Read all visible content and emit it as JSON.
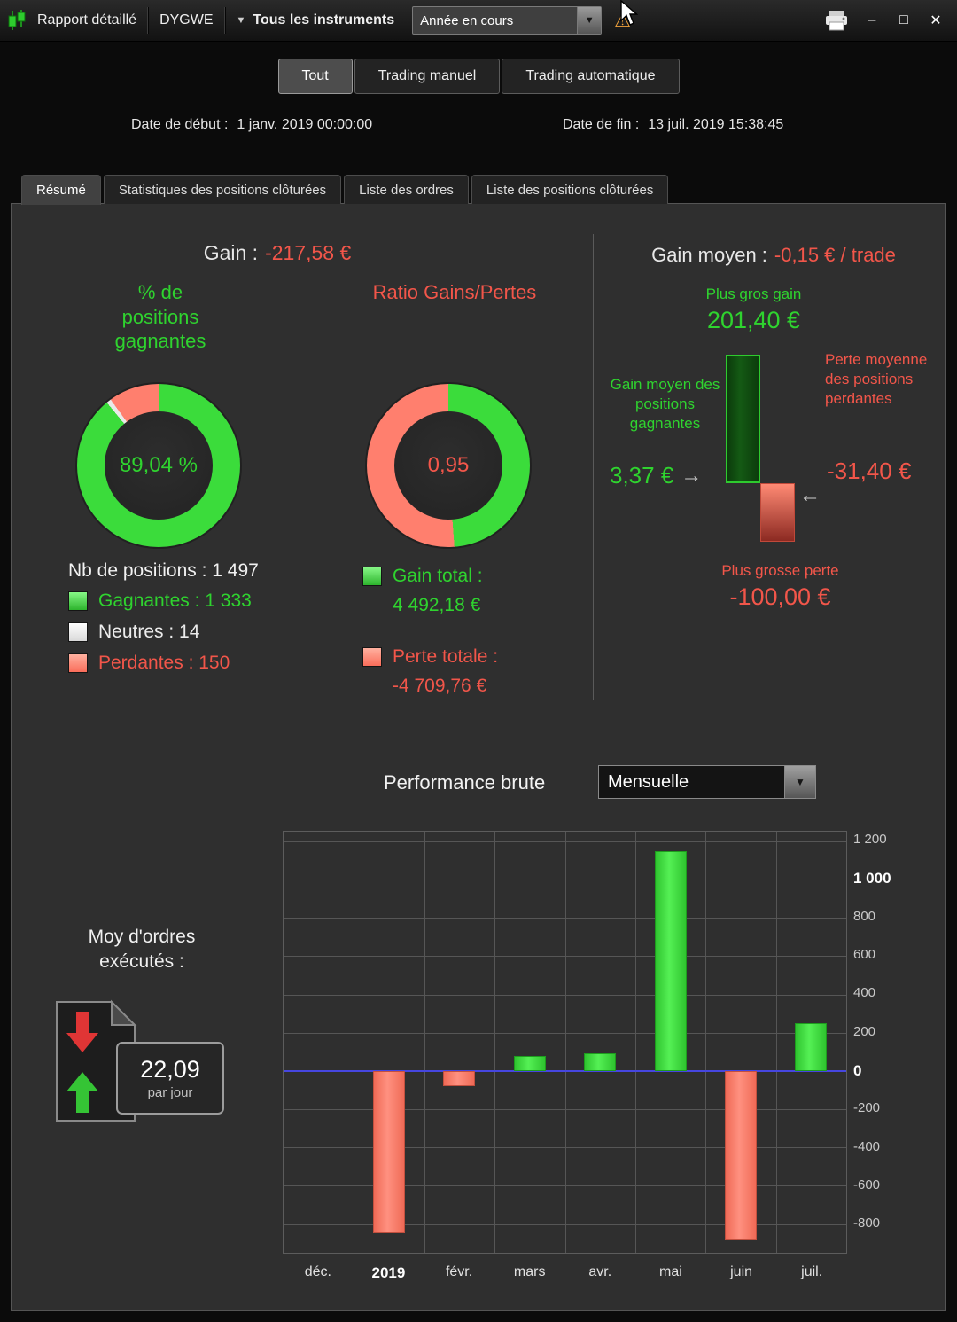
{
  "window": {
    "title": "Rapport détaillé",
    "account": "DYGWE",
    "instruments": "Tous les instruments",
    "period": "Année en cours"
  },
  "icons": {
    "caret_down": "▼",
    "warning": "⚠",
    "minimize": "–",
    "maximize": "□",
    "close": "✕",
    "left_arrow": "←",
    "right_arrow": "→"
  },
  "filter_tabs": [
    {
      "label": "Tout",
      "active": true
    },
    {
      "label": "Trading manuel",
      "active": false
    },
    {
      "label": "Trading automatique",
      "active": false
    }
  ],
  "dates": {
    "start_label": "Date de début :",
    "start_value": "1 janv. 2019 00:00:00",
    "end_label": "Date de fin :",
    "end_value": "13 juil. 2019 15:38:45"
  },
  "report_tabs": [
    "Résumé",
    "Statistiques des positions clôturées",
    "Liste des ordres",
    "Liste des positions clôturées"
  ],
  "summary": {
    "gain_label": "Gain :",
    "gain_value": "-217,58 €",
    "nb_positions": "Nb de positions : 1 497",
    "legend": [
      {
        "label": "Gagnantes : 1 333",
        "color": "#2fd32f"
      },
      {
        "label": "Neutres : 14",
        "color": "#ececec"
      },
      {
        "label": "Perdantes : 150",
        "color": "#f2564a"
      }
    ],
    "gain_total_label": "Gain total :",
    "gain_total_value": "4 492,18 €",
    "perte_totale_label": "Perte totale :",
    "perte_totale_value": "-4 709,76 €"
  },
  "averages": {
    "gain_moyen_label": "Gain moyen :",
    "gain_moyen_value": "-0,15 € / trade",
    "plus_gros_gain_label": "Plus gros gain",
    "plus_gros_gain_value": "201,40 €",
    "avg_win_label": "Gain moyen des positions gagnantes",
    "avg_win_value": "3,37 €",
    "avg_loss_label": "Perte moyenne des positions perdantes",
    "avg_loss_value": "-31,40 €",
    "plus_grosse_perte_label": "Plus grosse perte",
    "plus_grosse_perte_value": "-100,00 €"
  },
  "orders": {
    "label": "Moy d'ordres exécutés :",
    "value": "22,09",
    "unit": "par jour"
  },
  "performance": {
    "title": "Performance brute",
    "period": "Mensuelle"
  },
  "chart_data": [
    {
      "type": "pie",
      "title": "% de positions gagnantes",
      "labels": [
        "Gagnantes",
        "Neutres",
        "Perdantes"
      ],
      "values": [
        1333,
        14,
        150
      ],
      "percentages": [
        89.04,
        0.94,
        10.02
      ],
      "center_label": "89,04 %",
      "colors": [
        "#3bdc3b",
        "#e9e9e9",
        "#ff7f6e"
      ]
    },
    {
      "type": "pie",
      "title": "Ratio Gains/Pertes",
      "labels": [
        "Gain total",
        "Perte totale"
      ],
      "values": [
        4492.18,
        4709.76
      ],
      "percentages": [
        48.82,
        51.18
      ],
      "center_label": "0,95",
      "colors": [
        "#3bdc3b",
        "#ff7f6e"
      ]
    },
    {
      "type": "bar",
      "title": "Performance brute (Mensuelle)",
      "categories": [
        "déc.",
        "2019",
        "févr.",
        "mars",
        "avr.",
        "mai",
        "juin",
        "juil."
      ],
      "values": [
        null,
        -850,
        -80,
        80,
        90,
        1150,
        -880,
        250
      ],
      "ylim": [
        -950,
        1250
      ],
      "yticks": [
        {
          "value": 1200,
          "label": "1 200",
          "bold": false
        },
        {
          "value": 1000,
          "label": "1 000",
          "bold": true
        },
        {
          "value": 800,
          "label": "800",
          "bold": false
        },
        {
          "value": 600,
          "label": "600",
          "bold": false
        },
        {
          "value": 400,
          "label": "400",
          "bold": false
        },
        {
          "value": 200,
          "label": "200",
          "bold": false
        },
        {
          "value": 0,
          "label": "0",
          "bold": true
        },
        {
          "value": -200,
          "label": "-200",
          "bold": false
        },
        {
          "value": -400,
          "label": "-400",
          "bold": false
        },
        {
          "value": -600,
          "label": "-600",
          "bold": false
        },
        {
          "value": -800,
          "label": "-800",
          "bold": false
        }
      ],
      "bold_categories": [
        "2019"
      ],
      "positive_color": "#3fdf3f",
      "negative_color": "#ff7f6e",
      "zero_line_color": "#4646e0",
      "grid": true,
      "legend": "none",
      "ylabel_side": "right"
    }
  ]
}
